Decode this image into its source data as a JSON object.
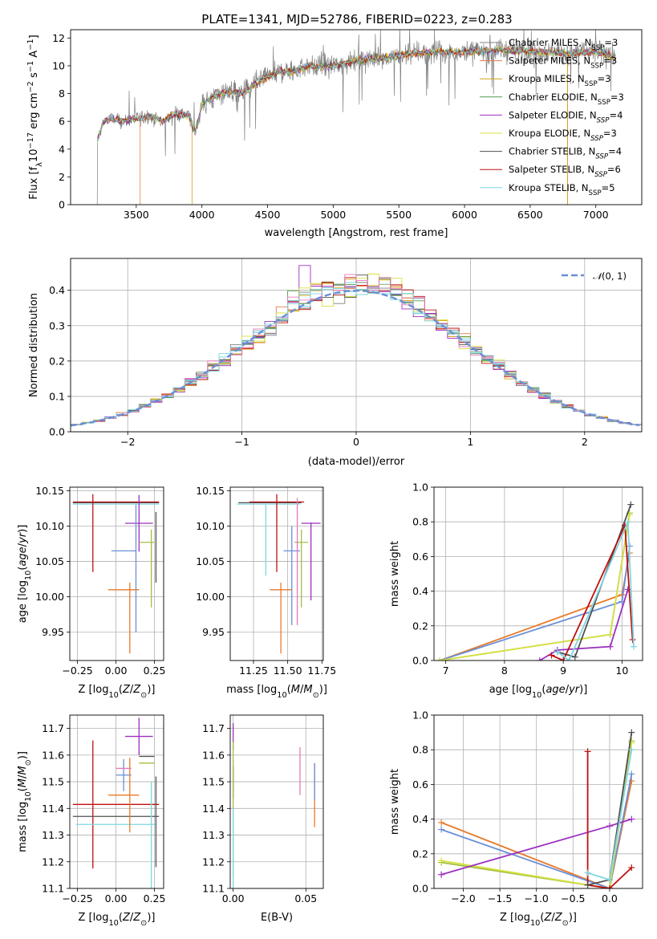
{
  "title": "PLATE=1341, MJD=52786, FIBERID=0223, z=0.283",
  "series": [
    {
      "name": "Chabrier MILES, N<sub>SSP</sub>=3",
      "color": "#808080"
    },
    {
      "name": "Salpeter MILES, N<sub>SSP</sub>=3",
      "color": "#e8794a"
    },
    {
      "name": "Kroupa MILES, N<sub>SSP</sub>=3",
      "color": "#d4a017"
    },
    {
      "name": "Chabrier ELODIE, N<sub>SSP</sub>=3",
      "color": "#4f9a4f"
    },
    {
      "name": "Salpeter ELODIE, N<sub>SSP</sub>=4",
      "color": "#9b30c0"
    },
    {
      "name": "Kroupa ELODIE, N<sub>SSP</sub>=3",
      "color": "#d8e040"
    },
    {
      "name": "Chabrier STELIB, N<sub>SSP</sub>=4",
      "color": "#505050"
    },
    {
      "name": "Salpeter STELIB, N<sub>SSP</sub>=6",
      "color": "#c01010"
    },
    {
      "name": "Kroupa STELIB, N<sub>SSP</sub>=5",
      "color": "#7fd6e0"
    }
  ],
  "extra_colors": {
    "blue": "#6a8fd8",
    "pink": "#e878b8",
    "orange": "#e87a2a",
    "green": "#a0c040",
    "cyan": "#7ad8e0"
  },
  "chart_data": [
    {
      "type": "line",
      "id": "spectrum",
      "xlabel": "wavelength [Angstrom, rest frame]",
      "ylabel": "Flux [fλ10⁻¹⁷ erg cm⁻² s⁻¹ A⁻¹]",
      "xlim": [
        3000,
        7350
      ],
      "ylim": [
        0,
        12.6
      ],
      "xticks": [
        3500,
        4000,
        4500,
        5000,
        5500,
        6000,
        6500,
        7000
      ],
      "yticks": [
        0,
        2,
        4,
        6,
        8,
        10,
        12
      ],
      "continuum": {
        "x": [
          3200,
          3250,
          3300,
          3400,
          3500,
          3600,
          3700,
          3800,
          3900,
          3950,
          4000,
          4100,
          4200,
          4300,
          4400,
          4500,
          4600,
          4700,
          4800,
          4900,
          5000,
          5200,
          5400,
          5600,
          5800,
          6000,
          6200,
          6400,
          6600,
          6800,
          7000,
          7150
        ],
        "y": [
          4.5,
          6.0,
          6.2,
          6.0,
          6.2,
          6.4,
          6.0,
          6.6,
          6.4,
          5.2,
          7.2,
          7.8,
          8.2,
          8.0,
          8.6,
          9.2,
          9.6,
          9.6,
          10.0,
          9.9,
          10.0,
          10.4,
          10.6,
          10.9,
          11.0,
          11.0,
          11.1,
          11.1,
          11.0,
          10.9,
          11.0,
          10.6
        ]
      },
      "model_starts": [
        {
          "series": "Chabrier MILES",
          "x_start": 3540
        },
        {
          "series": "Salpeter MILES",
          "x_start": 3530
        },
        {
          "series": "Kroupa MILES",
          "x_start": 3925
        },
        {
          "series": "Kroupa STELIB",
          "x_start": 3205
        }
      ]
    },
    {
      "type": "line",
      "id": "residual-distribution",
      "xlabel": "(data-model)/error",
      "ylabel": "Normed distribution",
      "xlim": [
        -2.5,
        2.5
      ],
      "ylim": [
        0,
        0.49
      ],
      "xticks": [
        -2,
        -1,
        0,
        1,
        2
      ],
      "yticks": [
        0.0,
        0.1,
        0.2,
        0.3,
        0.4
      ],
      "legend": "𝒩(0, 1)",
      "legend_position": "top-right",
      "bin_width": 0.1,
      "reference_curve": "normal(0,1)"
    },
    {
      "type": "scatter",
      "id": "age-vs-metallicity",
      "xlabel": "Z [log10(Z/Z⊙)]",
      "ylabel": "age  [log10(age/yr)]",
      "xlim": [
        -0.3,
        0.31
      ],
      "ylim": [
        9.91,
        10.155
      ],
      "xticks": [
        -0.25,
        0.0,
        0.25
      ],
      "yticks": [
        9.95,
        10.0,
        10.05,
        10.1,
        10.15
      ],
      "points": [
        {
          "x": 0.0,
          "y": 10.133,
          "xerr": 0.28,
          "yerr": 0.0,
          "color": "#505050"
        },
        {
          "x": 0.0,
          "y": 10.131,
          "xerr": 0.28,
          "yerr": 0.0,
          "color": "#7fd6e0"
        },
        {
          "x": 0.0,
          "y": 10.134,
          "xerr": 0.28,
          "yerr": 0.0,
          "color": "#c01010"
        },
        {
          "x": -0.15,
          "y": 10.09,
          "xerr": 0.0,
          "yerr": 0.055,
          "color": "#c01010"
        },
        {
          "x": 0.15,
          "y": 10.104,
          "xerr": 0.09,
          "yerr": 0.0,
          "color": "#9b30c0"
        },
        {
          "x": 0.15,
          "y": 10.104,
          "xerr": 0.0,
          "yerr": 0.04,
          "color": "#9b30c0"
        },
        {
          "x": 0.05,
          "y": 10.065,
          "xerr": 0.08,
          "yerr": 0.0,
          "color": "#6a8fd8"
        },
        {
          "x": 0.13,
          "y": 10.04,
          "xerr": 0.0,
          "yerr": 0.09,
          "color": "#6a8fd8"
        },
        {
          "x": 0.2,
          "y": 10.077,
          "xerr": 0.05,
          "yerr": 0.0,
          "color": "#a0c040"
        },
        {
          "x": 0.23,
          "y": 10.04,
          "xerr": 0.0,
          "yerr": 0.055,
          "color": "#a0c040"
        },
        {
          "x": 0.05,
          "y": 10.01,
          "xerr": 0.1,
          "yerr": 0.0,
          "color": "#e87a2a"
        },
        {
          "x": 0.09,
          "y": 9.97,
          "xerr": 0.0,
          "yerr": 0.05,
          "color": "#e87a2a"
        },
        {
          "x": 0.26,
          "y": 10.07,
          "xerr": 0.0,
          "yerr": 0.05,
          "color": "#505050"
        }
      ]
    },
    {
      "type": "scatter",
      "id": "age-vs-mass",
      "xlabel": "mass [log10(M/M⊙)]",
      "ylabel": "",
      "xlim": [
        11.08,
        11.76
      ],
      "ylim": [
        9.91,
        10.155
      ],
      "xticks": [
        11.25,
        11.5,
        11.75
      ],
      "yticks": [
        9.95,
        10.0,
        10.05,
        10.1,
        10.15
      ],
      "points": [
        {
          "x": 11.37,
          "y": 10.133,
          "xerr": 0.23,
          "yerr": 0.0,
          "color": "#505050"
        },
        {
          "x": 11.36,
          "y": 10.131,
          "xerr": 0.23,
          "yerr": 0.0,
          "color": "#7fd6e0"
        },
        {
          "x": 11.42,
          "y": 10.134,
          "xerr": 0.2,
          "yerr": 0.0,
          "color": "#c01010"
        },
        {
          "x": 11.42,
          "y": 10.09,
          "xerr": 0.0,
          "yerr": 0.055,
          "color": "#c01010"
        },
        {
          "x": 11.67,
          "y": 10.104,
          "xerr": 0.07,
          "yerr": 0.0,
          "color": "#9b30c0"
        },
        {
          "x": 11.67,
          "y": 10.05,
          "xerr": 0.0,
          "yerr": 0.055,
          "color": "#9b30c0"
        },
        {
          "x": 11.53,
          "y": 10.065,
          "xerr": 0.06,
          "yerr": 0.0,
          "color": "#6a8fd8"
        },
        {
          "x": 11.53,
          "y": 10.03,
          "xerr": 0.0,
          "yerr": 0.07,
          "color": "#6a8fd8"
        },
        {
          "x": 11.6,
          "y": 10.077,
          "xerr": 0.05,
          "yerr": 0.0,
          "color": "#a0c040"
        },
        {
          "x": 11.6,
          "y": 10.04,
          "xerr": 0.0,
          "yerr": 0.055,
          "color": "#a0c040"
        },
        {
          "x": 11.45,
          "y": 10.01,
          "xerr": 0.08,
          "yerr": 0.0,
          "color": "#e87a2a"
        },
        {
          "x": 11.45,
          "y": 9.97,
          "xerr": 0.0,
          "yerr": 0.05,
          "color": "#e87a2a"
        },
        {
          "x": 11.57,
          "y": 10.05,
          "xerr": 0.0,
          "yerr": 0.09,
          "color": "#e878b8"
        },
        {
          "x": 11.34,
          "y": 10.08,
          "xerr": 0.0,
          "yerr": 0.05,
          "color": "#7fd6e0"
        }
      ]
    },
    {
      "type": "line",
      "id": "mass-weight-vs-age",
      "xlabel": "age  [log10(age/yr)]",
      "ylabel": "mass weight",
      "xlim": [
        6.8,
        10.35
      ],
      "ylim": [
        0.0,
        1.0
      ],
      "xticks": [
        7,
        8,
        9,
        10
      ],
      "yticks": [
        0.0,
        0.2,
        0.4,
        0.6,
        0.8,
        1.0
      ],
      "series": [
        {
          "color": "#e87a2a",
          "x": [
            6.9,
            10.0,
            10.13
          ],
          "y": [
            0.0,
            0.38,
            0.62
          ]
        },
        {
          "color": "#6a8fd8",
          "x": [
            6.9,
            10.0,
            10.13
          ],
          "y": [
            0.0,
            0.34,
            0.66
          ]
        },
        {
          "color": "#a0c040",
          "x": [
            6.9,
            9.8,
            10.13
          ],
          "y": [
            0.0,
            0.15,
            0.85
          ]
        },
        {
          "color": "#d8e040",
          "x": [
            6.9,
            9.8,
            10.13
          ],
          "y": [
            0.0,
            0.15,
            0.84
          ]
        },
        {
          "color": "#505050",
          "x": [
            8.9,
            9.2,
            10.15
          ],
          "y": [
            0.05,
            0.02,
            0.9
          ]
        },
        {
          "color": "#9b30c0",
          "x": [
            8.6,
            8.9,
            9.8,
            10.1
          ],
          "y": [
            0.0,
            0.06,
            0.08,
            0.41
          ]
        },
        {
          "color": "#c01010",
          "x": [
            8.8,
            9.0,
            10.05,
            10.18
          ],
          "y": [
            0.03,
            0.0,
            0.78,
            0.12
          ]
        },
        {
          "color": "#7fd6e0",
          "x": [
            8.9,
            9.1,
            10.1,
            10.2
          ],
          "y": [
            0.05,
            0.0,
            0.8,
            0.08
          ]
        }
      ]
    },
    {
      "type": "scatter",
      "id": "mass-vs-metallicity",
      "xlabel": "Z [log10(Z/Z⊙)]",
      "ylabel": "mass [log10(M/M⊙)]",
      "xlim": [
        -0.3,
        0.31
      ],
      "ylim": [
        11.1,
        11.75
      ],
      "xticks": [
        -0.25,
        0.0,
        0.25
      ],
      "yticks": [
        11.1,
        11.2,
        11.3,
        11.4,
        11.5,
        11.6,
        11.7
      ],
      "points": [
        {
          "x": 0.0,
          "y": 11.415,
          "xerr": 0.28,
          "yerr": 0.0,
          "color": "#c01010"
        },
        {
          "x": -0.15,
          "y": 11.415,
          "xerr": 0.0,
          "yerr": 0.24,
          "color": "#c01010"
        },
        {
          "x": 0.0,
          "y": 11.37,
          "xerr": 0.28,
          "yerr": 0.0,
          "color": "#505050"
        },
        {
          "x": 0.0,
          "y": 11.34,
          "xerr": 0.26,
          "yerr": 0.0,
          "color": "#7fd6e0"
        },
        {
          "x": 0.15,
          "y": 11.67,
          "xerr": 0.09,
          "yerr": 0.0,
          "color": "#9b30c0"
        },
        {
          "x": 0.15,
          "y": 11.67,
          "xerr": 0.0,
          "yerr": 0.07,
          "color": "#9b30c0"
        },
        {
          "x": 0.05,
          "y": 11.525,
          "xerr": 0.05,
          "yerr": 0.0,
          "color": "#6a8fd8"
        },
        {
          "x": 0.05,
          "y": 11.525,
          "xerr": 0.0,
          "yerr": 0.06,
          "color": "#6a8fd8"
        },
        {
          "x": 0.2,
          "y": 11.595,
          "xerr": 0.05,
          "yerr": 0.0,
          "color": "#505050"
        },
        {
          "x": 0.2,
          "y": 11.57,
          "xerr": 0.05,
          "yerr": 0.0,
          "color": "#a0c040"
        },
        {
          "x": 0.05,
          "y": 11.45,
          "xerr": 0.1,
          "yerr": 0.0,
          "color": "#e87a2a"
        },
        {
          "x": 0.09,
          "y": 11.45,
          "xerr": 0.0,
          "yerr": 0.14,
          "color": "#e87a2a"
        },
        {
          "x": 0.05,
          "y": 11.55,
          "xerr": 0.05,
          "yerr": 0.0,
          "color": "#e878b8"
        },
        {
          "x": 0.26,
          "y": 11.35,
          "xerr": 0.0,
          "yerr": 0.17,
          "color": "#505050"
        },
        {
          "x": 0.23,
          "y": 11.3,
          "xerr": 0.0,
          "yerr": 0.2,
          "color": "#7fd6e0"
        }
      ]
    },
    {
      "type": "scatter",
      "id": "mass-vs-extinction",
      "xlabel": "E(B-V)",
      "ylabel": "",
      "xlim": [
        -0.002,
        0.062
      ],
      "ylim": [
        11.1,
        11.75
      ],
      "xticks": [
        0.0,
        0.05
      ],
      "yticks": [
        11.1,
        11.2,
        11.3,
        11.4,
        11.5,
        11.6,
        11.7
      ],
      "points": [
        {
          "x": 0.0,
          "y": 11.67,
          "xerr": 0.0,
          "yerr": 0.05,
          "color": "#9b30c0"
        },
        {
          "x": 0.0,
          "y": 11.5,
          "xerr": 0.0,
          "yerr": 0.06,
          "color": "#c01010"
        },
        {
          "x": 0.0,
          "y": 11.4,
          "xerr": 0.0,
          "yerr": 0.25,
          "color": "#a0c040"
        },
        {
          "x": 0.0,
          "y": 11.25,
          "xerr": 0.0,
          "yerr": 0.15,
          "color": "#7fd6e0"
        },
        {
          "x": 0.046,
          "y": 11.54,
          "xerr": 0.0,
          "yerr": 0.09,
          "color": "#e878b8"
        },
        {
          "x": 0.056,
          "y": 11.45,
          "xerr": 0.0,
          "yerr": 0.12,
          "color": "#e87a2a"
        },
        {
          "x": 0.056,
          "y": 11.5,
          "xerr": 0.0,
          "yerr": 0.07,
          "color": "#6a8fd8"
        }
      ]
    },
    {
      "type": "line",
      "id": "mass-weight-vs-metallicity",
      "xlabel": "Z [log10(Z/Z⊙)]",
      "ylabel": "mass weight",
      "xlim": [
        -2.4,
        0.45
      ],
      "ylim": [
        0.0,
        1.0
      ],
      "xticks": [
        -2.0,
        -1.5,
        -1.0,
        -0.5,
        0.0
      ],
      "yticks": [
        0.0,
        0.2,
        0.4,
        0.6,
        0.8,
        1.0
      ],
      "series": [
        {
          "color": "#e87a2a",
          "x": [
            -2.3,
            0.0,
            0.3
          ],
          "y": [
            0.38,
            0.0,
            0.62
          ]
        },
        {
          "color": "#6a8fd8",
          "x": [
            -2.3,
            0.0,
            0.3
          ],
          "y": [
            0.34,
            0.0,
            0.66
          ]
        },
        {
          "color": "#a0c040",
          "x": [
            -2.3,
            0.0,
            0.3
          ],
          "y": [
            0.15,
            0.0,
            0.85
          ]
        },
        {
          "color": "#d8e040",
          "x": [
            -2.3,
            0.0,
            0.3
          ],
          "y": [
            0.16,
            0.0,
            0.84
          ]
        },
        {
          "color": "#9b30c0",
          "x": [
            -2.3,
            0.0,
            0.3
          ],
          "y": [
            0.08,
            0.36,
            0.4
          ]
        },
        {
          "color": "#c01010",
          "x": [
            -0.3,
            -0.3,
            0.0,
            0.3
          ],
          "y": [
            0.79,
            0.02,
            0.0,
            0.12
          ]
        },
        {
          "color": "#505050",
          "x": [
            -0.3,
            0.0,
            0.3
          ],
          "y": [
            0.02,
            0.05,
            0.9
          ]
        },
        {
          "color": "#7fd6e0",
          "x": [
            -0.3,
            0.0,
            0.3
          ],
          "y": [
            0.09,
            0.05,
            0.8
          ]
        }
      ]
    }
  ]
}
